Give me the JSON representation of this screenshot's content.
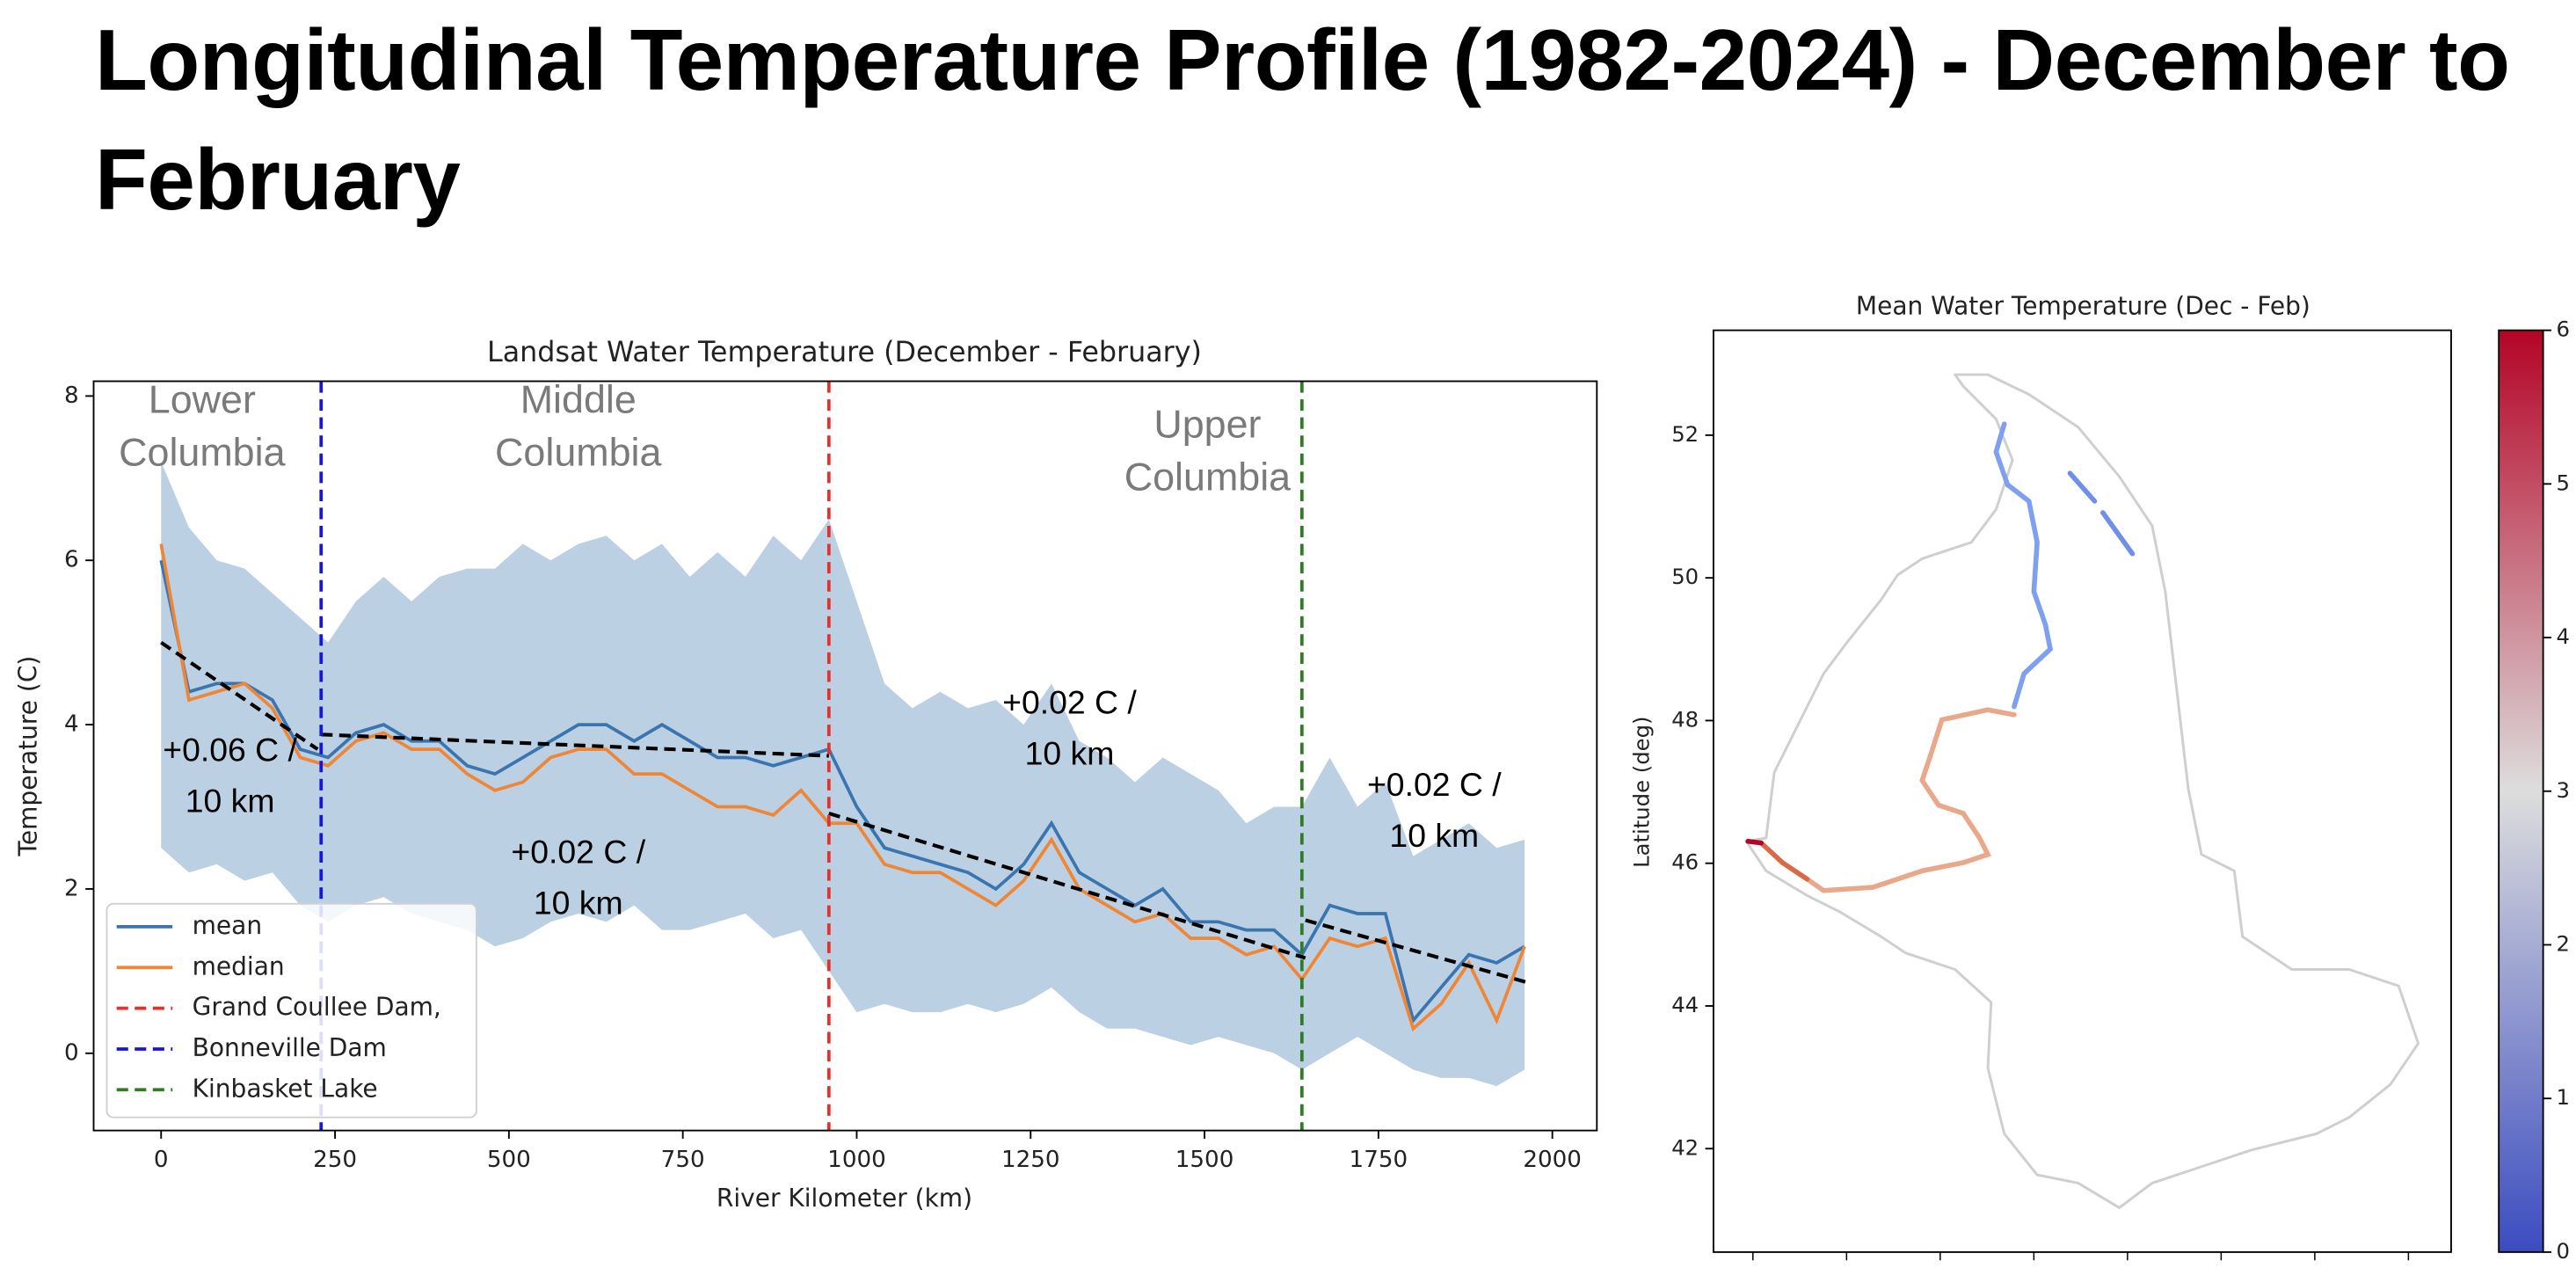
{
  "title": "Longitudinal Temperature Profile (1982-2024) - December to February",
  "chart_data": [
    {
      "type": "line",
      "title": "Landsat Water Temperature (December - February)",
      "xlabel": "River Kilometer (km)",
      "ylabel": "Temperature (C)",
      "x": [
        0,
        40,
        80,
        120,
        160,
        200,
        240,
        280,
        320,
        360,
        400,
        440,
        480,
        520,
        560,
        600,
        640,
        680,
        720,
        760,
        800,
        840,
        880,
        920,
        960,
        1000,
        1040,
        1080,
        1120,
        1160,
        1200,
        1240,
        1280,
        1320,
        1360,
        1400,
        1440,
        1480,
        1520,
        1560,
        1600,
        1640,
        1680,
        1720,
        1760,
        1800,
        1840,
        1880,
        1920,
        1960
      ],
      "series": [
        {
          "name": "mean",
          "color": "#3b75af",
          "values": [
            6.0,
            4.4,
            4.5,
            4.5,
            4.3,
            3.7,
            3.6,
            3.9,
            4.0,
            3.8,
            3.8,
            3.5,
            3.4,
            3.6,
            3.8,
            4.0,
            4.0,
            3.8,
            4.0,
            3.8,
            3.6,
            3.6,
            3.5,
            3.6,
            3.7,
            3.0,
            2.5,
            2.4,
            2.3,
            2.2,
            2.0,
            2.3,
            2.8,
            2.2,
            2.0,
            1.8,
            2.0,
            1.6,
            1.6,
            1.5,
            1.5,
            1.2,
            1.8,
            1.7,
            1.7,
            0.4,
            0.8,
            1.2,
            1.1,
            1.3
          ]
        },
        {
          "name": "median",
          "color": "#ef8636",
          "values": [
            6.2,
            4.3,
            4.4,
            4.5,
            4.2,
            3.6,
            3.5,
            3.8,
            3.9,
            3.7,
            3.7,
            3.4,
            3.2,
            3.3,
            3.6,
            3.7,
            3.7,
            3.4,
            3.4,
            3.2,
            3.0,
            3.0,
            2.9,
            3.2,
            2.8,
            2.8,
            2.3,
            2.2,
            2.2,
            2.0,
            1.8,
            2.1,
            2.6,
            2.0,
            1.8,
            1.6,
            1.7,
            1.4,
            1.4,
            1.2,
            1.3,
            0.9,
            1.4,
            1.3,
            1.4,
            0.3,
            0.6,
            1.1,
            0.4,
            1.3
          ]
        }
      ],
      "band": {
        "color": "#bcd0e4",
        "upper": [
          7.2,
          6.4,
          6.0,
          5.9,
          5.6,
          5.3,
          5.0,
          5.5,
          5.8,
          5.5,
          5.8,
          5.9,
          5.9,
          6.2,
          6.0,
          6.2,
          6.3,
          6.0,
          6.2,
          5.8,
          6.1,
          5.8,
          6.3,
          6.0,
          6.5,
          5.5,
          4.5,
          4.2,
          4.4,
          4.2,
          4.3,
          4.0,
          4.5,
          3.8,
          3.6,
          3.3,
          3.6,
          3.4,
          3.2,
          2.8,
          3.0,
          3.0,
          3.6,
          3.0,
          3.3,
          2.4,
          2.6,
          2.8,
          2.5,
          2.6
        ],
        "lower": [
          2.5,
          2.2,
          2.3,
          2.1,
          2.2,
          1.8,
          1.6,
          1.8,
          1.9,
          1.7,
          1.6,
          1.5,
          1.3,
          1.4,
          1.6,
          1.7,
          1.6,
          1.8,
          1.5,
          1.5,
          1.6,
          1.7,
          1.4,
          1.5,
          1.0,
          0.5,
          0.6,
          0.5,
          0.5,
          0.6,
          0.5,
          0.6,
          0.8,
          0.5,
          0.3,
          0.3,
          0.2,
          0.1,
          0.2,
          0.1,
          0.0,
          -0.2,
          0.0,
          0.2,
          0.0,
          -0.2,
          -0.3,
          -0.3,
          -0.4,
          -0.2
        ]
      },
      "vlines": [
        {
          "name": "Grand Coullee Dam,",
          "x": 960,
          "color": "#e8302a"
        },
        {
          "name": "Bonneville Dam",
          "x": 230,
          "color": "#1515e0"
        },
        {
          "name": "Kinbasket Lake",
          "x": 1640,
          "color": "#2e7d22"
        }
      ],
      "trends": [
        {
          "x": [
            0,
            225
          ],
          "y": [
            5.0,
            3.7
          ],
          "label": [
            "+0.06 C /",
            "10 km"
          ]
        },
        {
          "x": [
            230,
            960
          ],
          "y": [
            3.88,
            3.62
          ],
          "label": [
            "+0.02 C /",
            "10 km"
          ]
        },
        {
          "x": [
            960,
            1645
          ],
          "y": [
            2.92,
            1.16
          ],
          "label": [
            "+0.02 C /",
            "10 km"
          ]
        },
        {
          "x": [
            1645,
            1965
          ],
          "y": [
            1.62,
            0.86
          ],
          "label": [
            "+0.02 C /",
            "10 km"
          ]
        }
      ],
      "region_labels": [
        [
          "Lower",
          "Columbia"
        ],
        [
          "Middle",
          "Columbia"
        ],
        [
          "Upper",
          "Columbia"
        ]
      ],
      "xlim": [
        -97,
        2064
      ],
      "ylim": [
        -0.94,
        8.18
      ],
      "xticks": [
        0,
        250,
        500,
        750,
        1000,
        1250,
        1500,
        1750,
        2000
      ],
      "yticks": [
        0,
        2,
        4,
        6,
        8
      ],
      "legend": "lower left"
    },
    {
      "type": "map",
      "title": "Mean Water Temperature (Dec - Feb)",
      "ylabel": "Latitude (deg)",
      "ylim": [
        40.55,
        53.47
      ],
      "yticks": [
        42,
        44,
        46,
        48,
        50,
        52
      ],
      "colorbar": {
        "lim": [
          0,
          6
        ],
        "ticks": [
          0,
          1,
          2,
          3,
          4,
          5,
          6
        ],
        "colors": [
          "#3b4cc0",
          "#dddddd",
          "#b40426"
        ]
      }
    }
  ]
}
